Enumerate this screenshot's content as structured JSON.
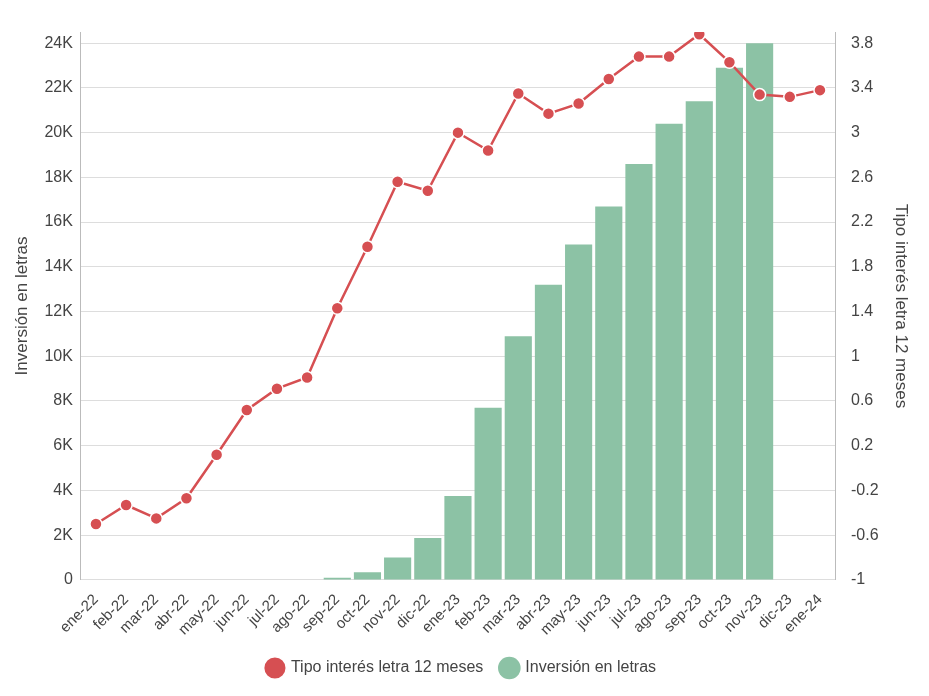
{
  "chart_data": {
    "type": "bar",
    "categories": [
      "ene-22",
      "feb-22",
      "mar-22",
      "abr-22",
      "may-22",
      "jun-22",
      "jul-22",
      "ago-22",
      "sep-22",
      "oct-22",
      "nov-22",
      "dic-22",
      "ene-23",
      "feb-23",
      "mar-23",
      "abr-23",
      "may-23",
      "jun-23",
      "jul-23",
      "ago-23",
      "sep-23",
      "oct-23",
      "nov-23",
      "dic-23",
      "ene-24"
    ],
    "series": [
      {
        "name": "Inversión en letras",
        "type": "bar",
        "color": "#8cc2a5",
        "values": [
          0,
          0,
          0,
          0,
          0,
          0,
          0,
          0,
          100,
          340,
          1000,
          1870,
          3750,
          7700,
          10900,
          13200,
          15000,
          16700,
          18600,
          20400,
          21400,
          22900,
          24000,
          null,
          null
        ]
      },
      {
        "name": "Tipo interés letra 12 meses",
        "type": "line",
        "axis": "y2",
        "color": "#d64f52",
        "marker": "circle",
        "line_style": "solid",
        "values": [
          -0.5,
          -0.33,
          -0.45,
          -0.27,
          0.12,
          0.52,
          0.71,
          0.81,
          1.43,
          1.98,
          2.56,
          2.48,
          3.0,
          2.84,
          3.35,
          3.17,
          3.26,
          3.48,
          3.68,
          3.68,
          3.88,
          3.63,
          3.34,
          3.32,
          3.38
        ]
      }
    ],
    "y_label": "Inversión en letras",
    "y2_label": "Tipo interés letra 12 meses",
    "ylim": [
      0,
      24500
    ],
    "yticks": [
      0,
      {
        "value": 2000,
        "label": "2K"
      },
      {
        "value": 4000,
        "label": "4K"
      },
      {
        "value": 6000,
        "label": "6K"
      },
      {
        "value": 8000,
        "label": "8K"
      },
      {
        "value": 10000,
        "label": "10K"
      },
      {
        "value": 12000,
        "label": "12K"
      },
      {
        "value": 14000,
        "label": "14K"
      },
      {
        "value": 16000,
        "label": "16K"
      },
      {
        "value": 18000,
        "label": "18K"
      },
      {
        "value": 20000,
        "label": "20K"
      },
      {
        "value": 22000,
        "label": "22K"
      },
      {
        "value": 24000,
        "label": "24K"
      }
    ],
    "y2lim": [
      -1,
      3.9
    ],
    "y2ticks": [
      -1,
      -0.6,
      -0.2,
      0.2,
      0.6,
      1,
      1.4,
      1.8,
      2.2,
      2.6,
      3,
      3.4,
      3.8
    ],
    "grid": true,
    "legend": "bottom"
  }
}
